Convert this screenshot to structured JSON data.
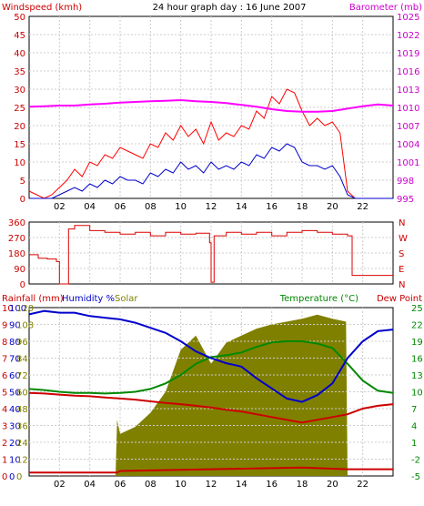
{
  "chart_data": [
    {
      "type": "line",
      "title": "24 hour graph day : 16 June 2007",
      "ylabel_left": "Windspeed (kmh)",
      "ylabel_right": "Barometer (mb)",
      "x_ticks": [
        "02",
        "04",
        "06",
        "08",
        "10",
        "12",
        "14",
        "16",
        "18",
        "20",
        "22"
      ],
      "xlim": [
        0,
        24
      ],
      "y_left_ticks": [
        "0",
        "5",
        "10",
        "15",
        "20",
        "25",
        "30",
        "35",
        "40",
        "45",
        "50"
      ],
      "y_left_lim": [
        0,
        50
      ],
      "y_right_ticks": [
        "995",
        "998",
        "1001",
        "1004",
        "1007",
        "1010",
        "1013",
        "1016",
        "1019",
        "1022",
        "1025"
      ],
      "y_right_lim": [
        995,
        1025
      ],
      "grid": true,
      "colors": {
        "gust": "#ff0000",
        "avg": "#0000cc",
        "baro": "#ff00ff",
        "left_axis": "#cc0000",
        "right_axis": "#cc00cc"
      },
      "series": [
        {
          "key": "gust",
          "x": [
            0,
            0.5,
            1,
            1.5,
            2,
            2.5,
            3,
            3.5,
            4,
            4.5,
            5,
            5.5,
            6,
            6.5,
            7,
            7.5,
            8,
            8.5,
            9,
            9.5,
            10,
            10.5,
            11,
            11.5,
            12,
            12.5,
            13,
            13.5,
            14,
            14.5,
            15,
            15.5,
            16,
            16.5,
            17,
            17.5,
            18,
            18.5,
            19,
            19.5,
            20,
            20.5,
            21,
            21.5,
            22,
            22.5,
            23,
            23.5,
            24
          ],
          "values": [
            2,
            1,
            0,
            1,
            3,
            5,
            8,
            6,
            10,
            9,
            12,
            11,
            14,
            13,
            12,
            11,
            15,
            14,
            18,
            16,
            20,
            17,
            19,
            15,
            21,
            16,
            18,
            17,
            20,
            19,
            24,
            22,
            28,
            26,
            30,
            29,
            24,
            20,
            22,
            20,
            21,
            18,
            2,
            0,
            0,
            0,
            0,
            0,
            0
          ]
        },
        {
          "key": "avg",
          "x": [
            0,
            0.5,
            1,
            1.5,
            2,
            2.5,
            3,
            3.5,
            4,
            4.5,
            5,
            5.5,
            6,
            6.5,
            7,
            7.5,
            8,
            8.5,
            9,
            9.5,
            10,
            10.5,
            11,
            11.5,
            12,
            12.5,
            13,
            13.5,
            14,
            14.5,
            15,
            15.5,
            16,
            16.5,
            17,
            17.5,
            18,
            18.5,
            19,
            19.5,
            20,
            20.5,
            21,
            21.5,
            22,
            22.5,
            23,
            23.5,
            24
          ],
          "values": [
            0,
            0,
            0,
            0,
            1,
            2,
            3,
            2,
            4,
            3,
            5,
            4,
            6,
            5,
            5,
            4,
            7,
            6,
            8,
            7,
            10,
            8,
            9,
            7,
            10,
            8,
            9,
            8,
            10,
            9,
            12,
            11,
            14,
            13,
            15,
            14,
            10,
            9,
            9,
            8,
            9,
            6,
            1,
            0,
            0,
            0,
            0,
            0,
            0
          ]
        },
        {
          "key": "baro",
          "x": [
            0,
            1,
            2,
            3,
            4,
            5,
            6,
            7,
            8,
            9,
            10,
            11,
            12,
            13,
            14,
            15,
            16,
            17,
            18,
            19,
            20,
            21,
            22,
            23,
            24
          ],
          "values": [
            1010.1,
            1010.2,
            1010.3,
            1010.3,
            1010.5,
            1010.6,
            1010.8,
            1010.9,
            1011.0,
            1011.1,
            1011.2,
            1011.0,
            1010.9,
            1010.7,
            1010.4,
            1010.1,
            1009.7,
            1009.4,
            1009.3,
            1009.3,
            1009.4,
            1009.8,
            1010.2,
            1010.5,
            1010.3
          ]
        }
      ]
    },
    {
      "type": "line",
      "xlim": [
        0,
        24
      ],
      "y_left_ticks": [
        "0",
        "90",
        "180",
        "270",
        "360"
      ],
      "y_left_lim": [
        0,
        360
      ],
      "y_right_ticks": [
        "N",
        "E",
        "S",
        "W",
        "N"
      ],
      "colors": {
        "dir": "#dd0000",
        "axis": "#cc0000"
      },
      "series": [
        {
          "key": "dir",
          "x": [
            0,
            0.6,
            1.2,
            1.8,
            2.0,
            2.3,
            2.6,
            3,
            4,
            5,
            6,
            7,
            8,
            9,
            10,
            11,
            11.9,
            12.0,
            12.2,
            13,
            14,
            15,
            16,
            17,
            18,
            19,
            20,
            21,
            21.3,
            22,
            23,
            24
          ],
          "values": [
            170,
            150,
            145,
            130,
            0,
            0,
            320,
            340,
            310,
            300,
            290,
            300,
            280,
            300,
            290,
            295,
            240,
            10,
            280,
            300,
            290,
            300,
            280,
            300,
            310,
            300,
            290,
            280,
            50,
            50,
            50,
            50
          ]
        }
      ]
    },
    {
      "type": "line",
      "ylabels": [
        "Rainfall (mm)",
        "Humidity %",
        "Solar",
        "Temperature (°C)",
        "Dew Point"
      ],
      "xlim": [
        0,
        24
      ],
      "y_left_ticks_rain": [
        "0",
        "1",
        "2",
        "3",
        "4",
        "5",
        "6",
        "7",
        "8",
        "9",
        "10"
      ],
      "y_left_ticks_hum": [
        "0",
        "10",
        "20",
        "30",
        "40",
        "50",
        "60",
        "70",
        "80",
        "90",
        "100"
      ],
      "y_left_ticks_solar": [
        "0",
        "12",
        "24",
        "36",
        "48",
        "60",
        "72",
        "84",
        "96",
        "108",
        "120"
      ],
      "y_right_ticks": [
        "-5",
        "-2",
        "1",
        "4",
        "7",
        "10",
        "13",
        "16",
        "19",
        "22",
        "25"
      ],
      "y_right_lim": [
        -5,
        25
      ],
      "colors": {
        "humidity": "#0000cc",
        "temperature": "#008800",
        "dewpoint": "#cc0000",
        "solar": "#808000",
        "rain": "#cc0000"
      },
      "series": [
        {
          "key": "humidity",
          "x": [
            0,
            1,
            2,
            3,
            4,
            5,
            6,
            7,
            8,
            9,
            10,
            11,
            12,
            13,
            14,
            15,
            16,
            17,
            18,
            19,
            20,
            21,
            22,
            23,
            24
          ],
          "values": [
            96,
            98,
            97,
            97,
            95,
            94,
            93,
            91,
            88,
            85,
            80,
            74,
            70,
            67,
            65,
            58,
            52,
            46,
            44,
            48,
            55,
            70,
            80,
            86,
            87
          ]
        },
        {
          "key": "temperature",
          "x": [
            0,
            1,
            2,
            3,
            4,
            5,
            6,
            7,
            8,
            9,
            10,
            11,
            12,
            13,
            14,
            15,
            16,
            17,
            18,
            19,
            20,
            21,
            22,
            23,
            24
          ],
          "values": [
            10.5,
            10.3,
            10.0,
            9.8,
            9.8,
            9.7,
            9.8,
            10.0,
            10.5,
            11.5,
            13.0,
            15.0,
            16.2,
            16.5,
            17.0,
            18.0,
            18.8,
            19.0,
            19.0,
            18.6,
            17.8,
            15.0,
            12.0,
            10.2,
            9.8
          ]
        },
        {
          "key": "dewpoint",
          "x": [
            0,
            1,
            2,
            3,
            4,
            5,
            6,
            7,
            8,
            9,
            10,
            11,
            12,
            13,
            14,
            15,
            16,
            17,
            18,
            19,
            20,
            21,
            22,
            23,
            24
          ],
          "values": [
            9.8,
            9.7,
            9.5,
            9.3,
            9.2,
            9.0,
            8.8,
            8.6,
            8.3,
            8.0,
            7.8,
            7.5,
            7.2,
            6.8,
            6.5,
            6.0,
            5.5,
            5.0,
            4.5,
            5.0,
            5.5,
            6.0,
            7.0,
            7.5,
            7.8
          ]
        },
        {
          "key": "solar",
          "x": [
            0,
            5.7,
            5.8,
            6,
            7,
            8,
            9,
            10,
            11,
            12,
            13,
            14,
            15,
            16,
            17,
            18,
            19,
            20,
            20.9,
            21,
            24
          ],
          "values": [
            0,
            0,
            40,
            30,
            35,
            45,
            60,
            90,
            100,
            80,
            95,
            100,
            105,
            108,
            110,
            112,
            115,
            112,
            110,
            0,
            0
          ]
        },
        {
          "key": "rain",
          "x": [
            0,
            5.8,
            6,
            12,
            18,
            21,
            24
          ],
          "values": [
            0.2,
            0.2,
            0.3,
            0.4,
            0.5,
            0.4,
            0.4
          ]
        }
      ]
    }
  ]
}
